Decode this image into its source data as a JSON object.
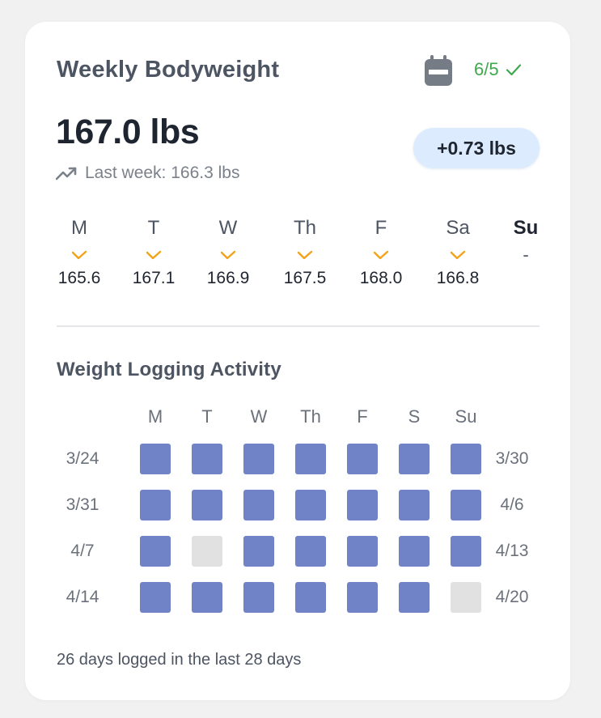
{
  "card": {
    "title": "Weekly Bodyweight",
    "icon": "calendar-icon",
    "goal_text": "6/5",
    "current_weight": "167.0 lbs",
    "delta": "+0.73 lbs",
    "last_week": "Last week: 166.3 lbs"
  },
  "days": [
    {
      "label": "M",
      "value": "165.6",
      "logged": true,
      "today": false
    },
    {
      "label": "T",
      "value": "167.1",
      "logged": true,
      "today": false
    },
    {
      "label": "W",
      "value": "166.9",
      "logged": true,
      "today": false
    },
    {
      "label": "Th",
      "value": "167.5",
      "logged": true,
      "today": false
    },
    {
      "label": "F",
      "value": "168.0",
      "logged": true,
      "today": false
    },
    {
      "label": "Sa",
      "value": "166.8",
      "logged": true,
      "today": false
    },
    {
      "label": "Su",
      "value": "-",
      "logged": false,
      "today": true
    }
  ],
  "activity": {
    "title": "Weight Logging Activity",
    "headers": [
      "M",
      "T",
      "W",
      "Th",
      "F",
      "S",
      "Su"
    ],
    "rows": [
      {
        "start": "3/24",
        "end": "3/30",
        "cells": [
          1,
          1,
          1,
          1,
          1,
          1,
          1
        ]
      },
      {
        "start": "3/31",
        "end": "4/6",
        "cells": [
          1,
          1,
          1,
          1,
          1,
          1,
          1
        ]
      },
      {
        "start": "4/7",
        "end": "4/13",
        "cells": [
          1,
          0,
          1,
          1,
          1,
          1,
          1
        ]
      },
      {
        "start": "4/14",
        "end": "4/20",
        "cells": [
          1,
          1,
          1,
          1,
          1,
          1,
          0
        ]
      }
    ],
    "summary": "26 days logged in the last 28 days"
  },
  "colors": {
    "logged": "#6f83c6",
    "empty": "#e1e1e1",
    "check": "#f2a31a",
    "goal": "#3fa84b"
  }
}
